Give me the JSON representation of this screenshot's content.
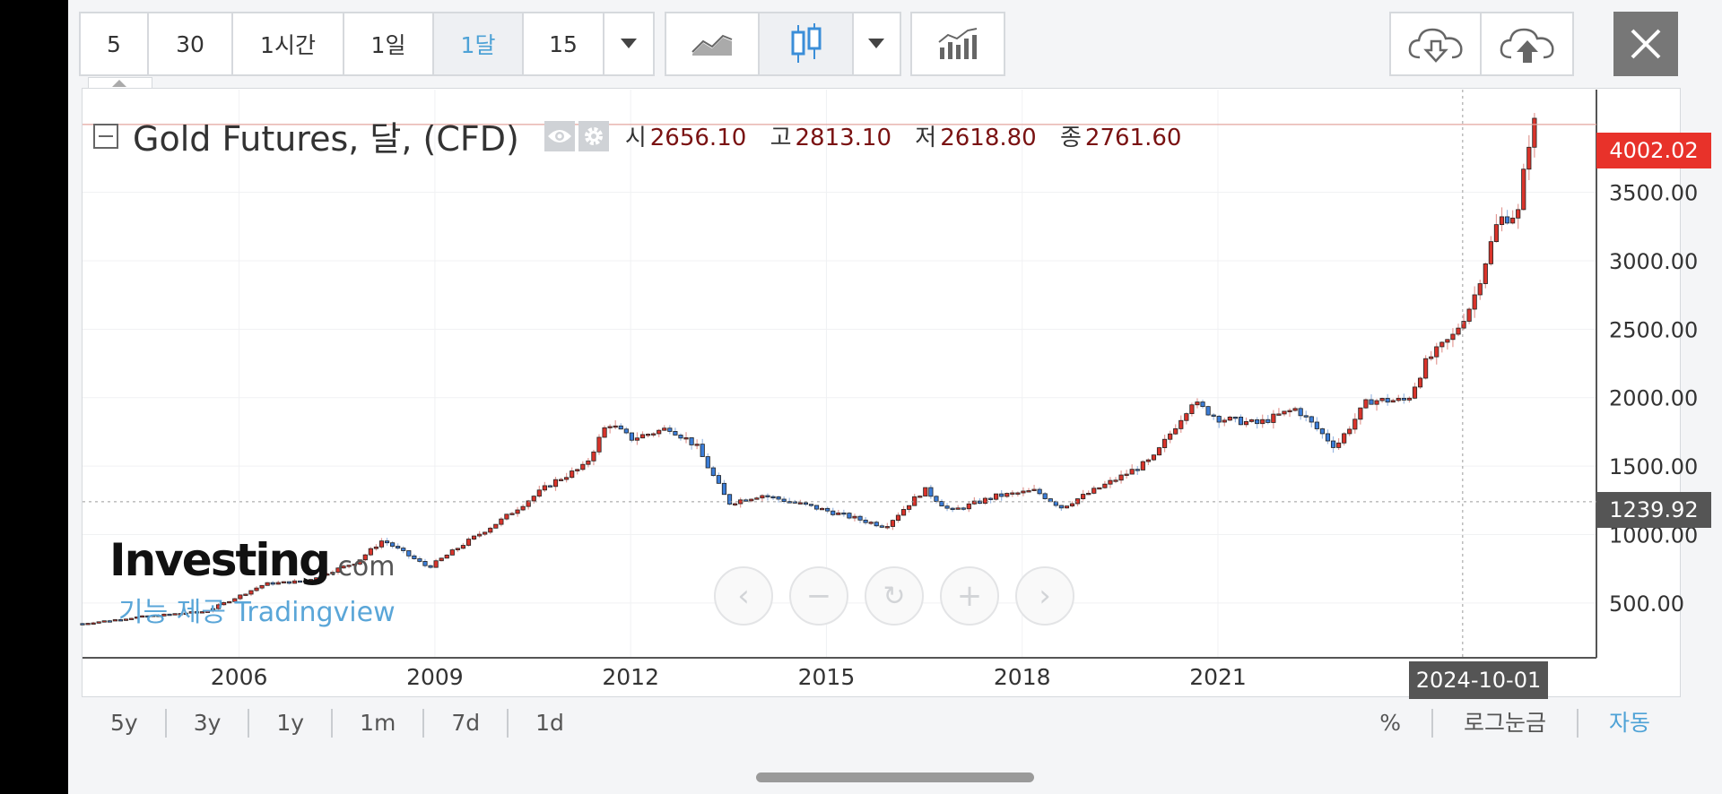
{
  "toolbar": {
    "intervals": [
      "5",
      "30",
      "1시간",
      "1일",
      "1달",
      "15"
    ],
    "active_interval": "1달",
    "icons": [
      "chevron-down-icon",
      "line-chart-icon",
      "candlestick-icon",
      "chevron-down-icon",
      "indicators-icon",
      "cloud-download-icon",
      "cloud-upload-icon",
      "close-icon"
    ]
  },
  "legend": {
    "title": "Gold Futures, 달, (CFD)",
    "open_label": "시",
    "open": "2656.10",
    "high_label": "고",
    "high": "2813.10",
    "low_label": "저",
    "low": "2618.80",
    "close_label": "종",
    "close": "2761.60"
  },
  "price_tags": {
    "last": "4002.02",
    "cursor": "1239.92",
    "last_color": "#e8322a",
    "cursor_color": "#555555"
  },
  "crosshair_date": "2024-10-01",
  "watermark": {
    "brand": "Investing",
    "brand_suffix": ".com",
    "provider": "기능 제공 Tradingview"
  },
  "bottom": {
    "ranges": [
      "5y",
      "3y",
      "1y",
      "1m",
      "7d",
      "1d"
    ],
    "options": [
      "%",
      "로그눈금",
      "자동"
    ]
  },
  "chart_data": {
    "type": "candlestick",
    "title": "Gold Futures, 달, (CFD)",
    "x_ticks": [
      "2006",
      "2009",
      "2012",
      "2015",
      "2018",
      "2021"
    ],
    "y_ticks": [
      "500.00",
      "1000.00",
      "1500.00",
      "2000.00",
      "2500.00",
      "3000.00",
      "3500.00"
    ],
    "ylim": [
      100,
      4250
    ],
    "x_range": [
      2003.6,
      2026.8
    ],
    "grid": true,
    "up_color": "#d9342b",
    "down_color": "#3b7dd8",
    "price_path": [
      [
        2003.6,
        350
      ],
      [
        2004.5,
        400
      ],
      [
        2005.5,
        440
      ],
      [
        2006.4,
        640
      ],
      [
        2007.0,
        660
      ],
      [
        2007.8,
        800
      ],
      [
        2008.2,
        960
      ],
      [
        2008.9,
        760
      ],
      [
        2009.5,
        950
      ],
      [
        2010.0,
        1100
      ],
      [
        2010.8,
        1380
      ],
      [
        2011.3,
        1500
      ],
      [
        2011.65,
        1820
      ],
      [
        2012.0,
        1700
      ],
      [
        2012.6,
        1780
      ],
      [
        2013.0,
        1650
      ],
      [
        2013.5,
        1230
      ],
      [
        2014.0,
        1290
      ],
      [
        2014.8,
        1200
      ],
      [
        2015.9,
        1060
      ],
      [
        2016.5,
        1330
      ],
      [
        2016.9,
        1170
      ],
      [
        2017.6,
        1280
      ],
      [
        2018.2,
        1320
      ],
      [
        2018.6,
        1200
      ],
      [
        2019.5,
        1420
      ],
      [
        2020.0,
        1550
      ],
      [
        2020.6,
        1970
      ],
      [
        2021.0,
        1850
      ],
      [
        2021.6,
        1810
      ],
      [
        2022.2,
        1920
      ],
      [
        2022.8,
        1640
      ],
      [
        2023.3,
        1980
      ],
      [
        2023.9,
        1980
      ],
      [
        2024.2,
        2270
      ],
      [
        2024.6,
        2450
      ],
      [
        2024.9,
        2700
      ],
      [
        2025.3,
        3300
      ],
      [
        2025.6,
        3350
      ],
      [
        2025.75,
        3850
      ],
      [
        2025.85,
        4002
      ]
    ]
  }
}
